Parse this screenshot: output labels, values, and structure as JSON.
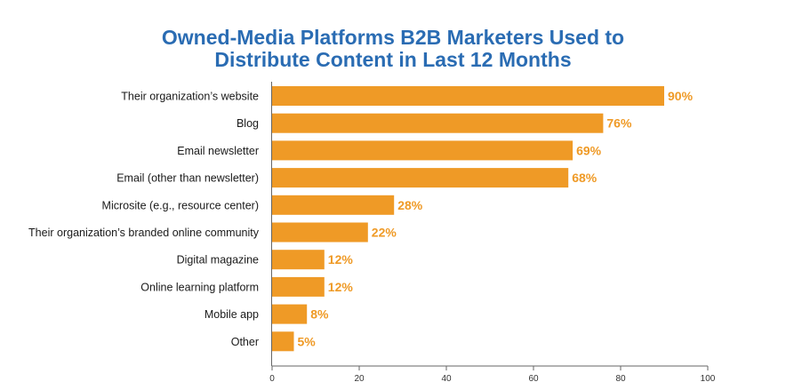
{
  "chart_data": {
    "type": "bar",
    "orientation": "horizontal",
    "title_lines": [
      "Owned-Media Platforms B2B Marketers Used to",
      "Distribute Content in Last 12 Months"
    ],
    "categories": [
      "Their organization’s website",
      "Blog",
      "Email newsletter",
      "Email (other than newsletter)",
      "Microsite (e.g., resource center)",
      "Their organization’s branded online community",
      "Digital magazine",
      "Online learning platform",
      "Mobile app",
      "Other"
    ],
    "values": [
      90,
      76,
      69,
      68,
      28,
      22,
      12,
      12,
      8,
      5
    ],
    "value_labels": [
      "90%",
      "76%",
      "69%",
      "68%",
      "28%",
      "22%",
      "12%",
      "12%",
      "8%",
      "5%"
    ],
    "xlim": [
      0,
      100
    ],
    "xticks": [
      0,
      20,
      40,
      60,
      80,
      100
    ],
    "xlabel": "",
    "ylabel": "",
    "grid": false,
    "colors": {
      "bar": "#ef9a26",
      "value_label": "#ef9a26",
      "title": "#2a6cb3",
      "axis": "#666666"
    }
  }
}
